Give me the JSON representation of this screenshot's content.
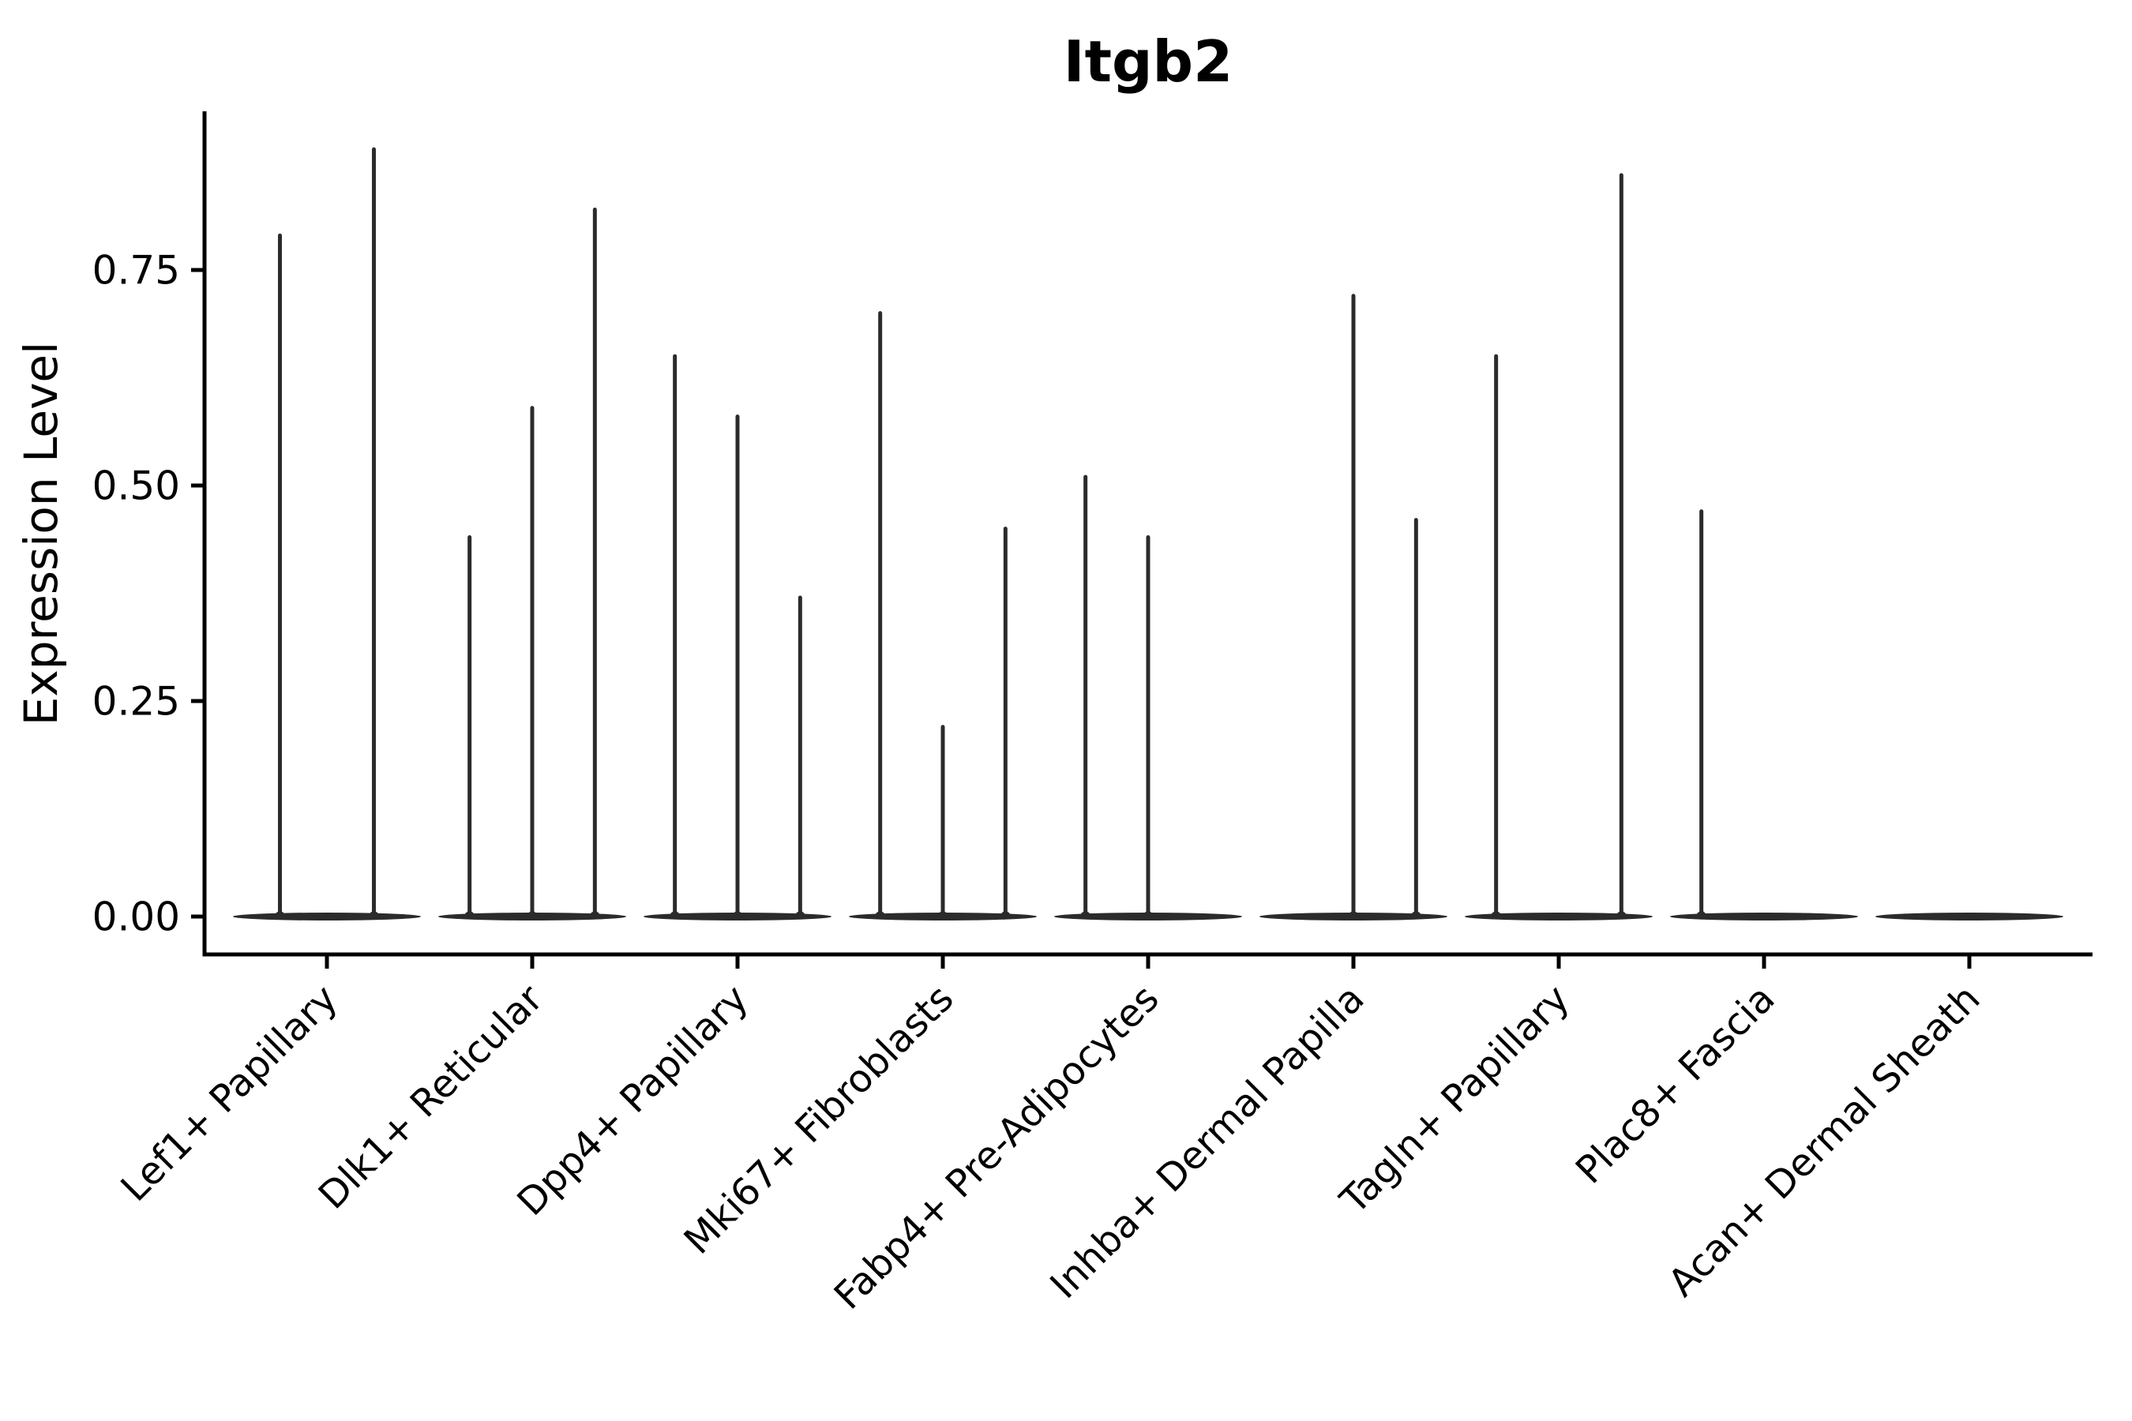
{
  "chart_data": {
    "type": "violin",
    "title": "Itgb2",
    "ylabel": "Expression Level",
    "xlabel": "",
    "grid": false,
    "legend": "none",
    "ylim": [
      -0.044,
      0.934
    ],
    "yticks": [
      0.0,
      0.25,
      0.5,
      0.75
    ],
    "ytick_labels": [
      "0.00",
      "0.25",
      "0.50",
      "0.75"
    ],
    "violin_color": "#2b2b2b",
    "axis_color": "#000000",
    "background_color": "#ffffff",
    "note": "Seurat-style stacked/split violin plot; expression mostly 0 so violins collapse to a wide flat base at 0 with a thin spike up to the max expression value per violin",
    "categories": [
      {
        "label": "Lef1+ Papillary",
        "peaks": [
          0.79,
          0.89
        ]
      },
      {
        "label": "Dlk1+ Reticular",
        "peaks": [
          0.44,
          0.59,
          0.82
        ]
      },
      {
        "label": "Dpp4+ Papillary",
        "peaks": [
          0.65,
          0.58,
          0.37
        ]
      },
      {
        "label": "Mki67+ Fibroblasts",
        "peaks": [
          0.7,
          0.22,
          0.45
        ]
      },
      {
        "label": "Fabp4+ Pre-Adipocytes",
        "peaks": [
          0.51,
          0.44,
          0
        ]
      },
      {
        "label": "Inhba+ Dermal Papilla",
        "peaks": [
          0,
          0.72,
          0.46
        ]
      },
      {
        "label": "Tagln+ Papillary",
        "peaks": [
          0.65,
          0,
          0.86
        ]
      },
      {
        "label": "Plac8+ Fascia",
        "peaks": [
          0.47,
          0,
          0
        ]
      },
      {
        "label": "Acan+ Dermal Sheath",
        "peaks": [
          0,
          0,
          0
        ]
      }
    ]
  }
}
